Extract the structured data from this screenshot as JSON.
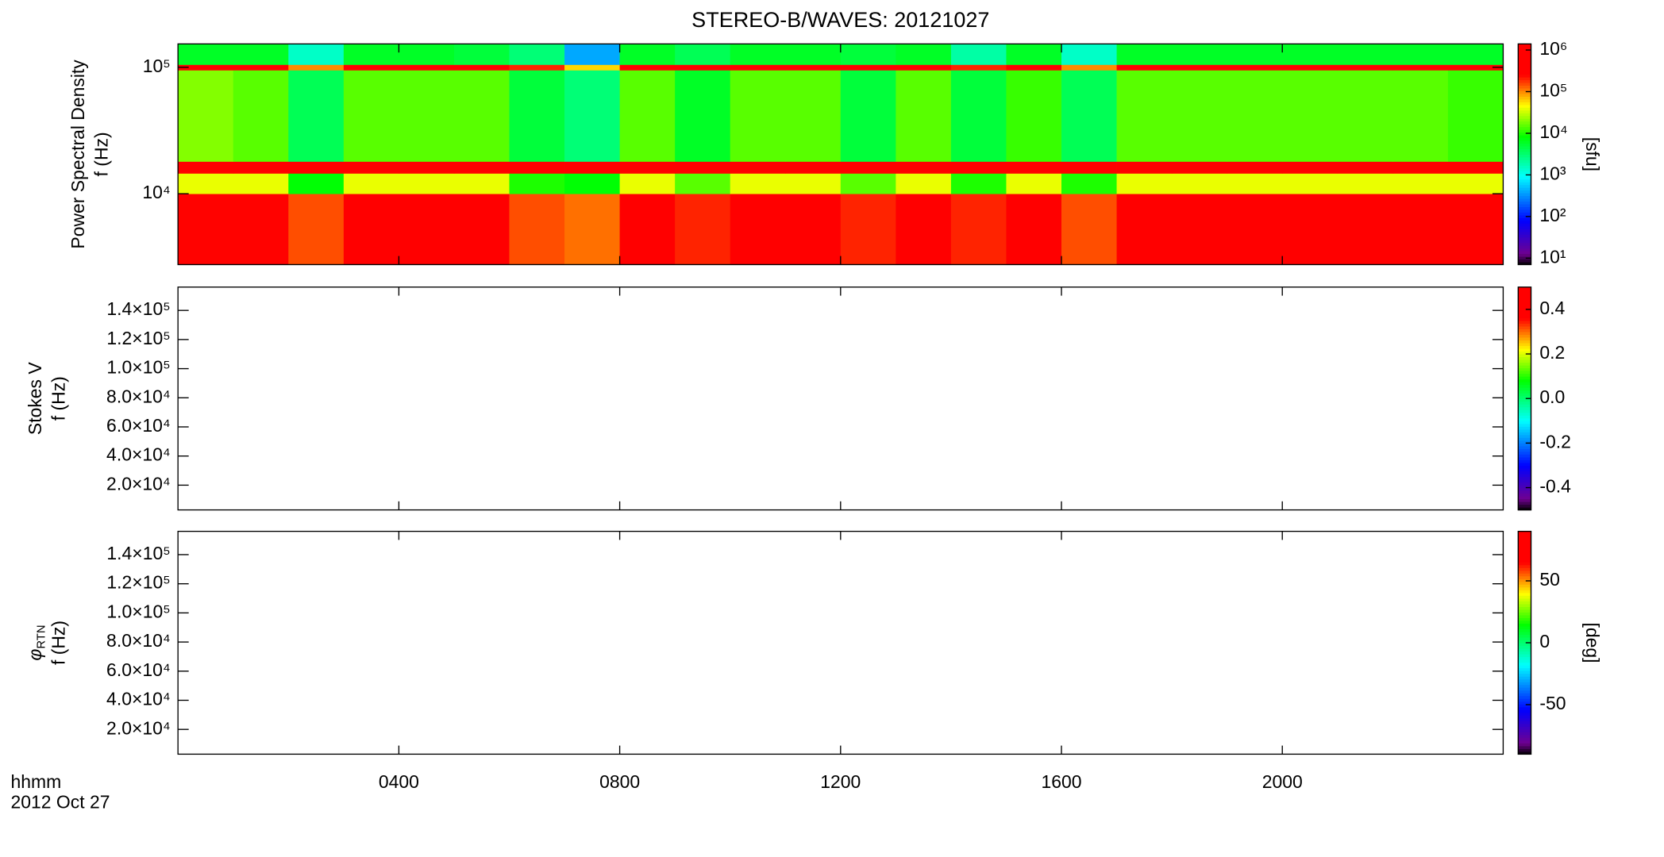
{
  "chart_data": [
    {
      "type": "heatmap",
      "title": "STEREO-B/WAVES: 20121027",
      "ylabel": "Power Spectral Density",
      "ysublabel": "f (Hz)",
      "xlim": [
        0,
        24
      ],
      "ylim": [
        2750,
        153000
      ],
      "ylog": true,
      "yticks": [
        {
          "value": 10000,
          "label": "10⁴"
        },
        {
          "value": 100000,
          "label": "10⁵"
        }
      ],
      "x_bins": [
        0,
        1,
        2,
        3,
        4,
        5,
        6,
        7,
        8,
        9,
        10,
        11,
        12,
        13,
        14,
        15,
        16,
        17,
        18,
        19,
        20,
        21,
        22,
        23,
        24
      ],
      "y_bins": [
        2750,
        10000,
        14500,
        18000,
        95000,
        105000,
        153000
      ],
      "values": [
        [
          250000,
          250000,
          150000,
          300000,
          400000,
          400000,
          150000,
          120000,
          400000,
          200000,
          400000,
          500000,
          200000,
          400000,
          200000,
          300000,
          150000,
          500000,
          500000,
          500000,
          500000,
          500000,
          500000,
          500000
        ],
        [
          40000,
          40000,
          8000,
          40000,
          40000,
          40000,
          10000,
          8000,
          40000,
          15000,
          40000,
          40000,
          15000,
          40000,
          10000,
          40000,
          10000,
          40000,
          40000,
          40000,
          40000,
          40000,
          40000,
          40000
        ],
        [
          1000000,
          1000000,
          1000000,
          1000000,
          1000000,
          1000000,
          1000000,
          1000000,
          1000000,
          1000000,
          1000000,
          1000000,
          1000000,
          1000000,
          1000000,
          1000000,
          1000000,
          1000000,
          1000000,
          1000000,
          1000000,
          1000000,
          1000000,
          1000000
        ],
        [
          20000,
          15000,
          4000,
          15000,
          15000,
          15000,
          5000,
          3000,
          15000,
          6000,
          15000,
          15000,
          5000,
          15000,
          5000,
          12000,
          4000,
          15000,
          15000,
          15000,
          15000,
          15000,
          15000,
          12000
        ],
        [
          300000,
          300000,
          100000,
          300000,
          300000,
          300000,
          200000,
          60000,
          300000,
          300000,
          300000,
          300000,
          300000,
          300000,
          200000,
          300000,
          100000,
          300000,
          300000,
          300000,
          300000,
          300000,
          300000,
          300000
        ],
        [
          6000,
          6000,
          1500,
          6000,
          6000,
          5000,
          3000,
          400,
          6000,
          4000,
          6000,
          6000,
          5000,
          6000,
          2000,
          6000,
          1500,
          6000,
          6000,
          6000,
          6000,
          6000,
          6000,
          6000
        ]
      ],
      "colormap": "rainbow",
      "colorbar": {
        "label": "[sfu]",
        "log": true,
        "lim": [
          7,
          1400000
        ],
        "ticks": [
          {
            "value": 10,
            "label": "10¹"
          },
          {
            "value": 100,
            "label": "10²"
          },
          {
            "value": 1000,
            "label": "10³"
          },
          {
            "value": 10000,
            "label": "10⁴"
          },
          {
            "value": 100000,
            "label": "10⁵"
          },
          {
            "value": 1000000,
            "label": "10⁶"
          }
        ]
      }
    },
    {
      "type": "heatmap",
      "ylabel": "Stokes V",
      "ysublabel": "f (Hz)",
      "xlim": [
        0,
        24
      ],
      "ylim": [
        3000,
        156000
      ],
      "ylog": false,
      "yticks": [
        {
          "value": 20000,
          "label": "2.0×10⁴"
        },
        {
          "value": 40000,
          "label": "4.0×10⁴"
        },
        {
          "value": 60000,
          "label": "6.0×10⁴"
        },
        {
          "value": 80000,
          "label": "8.0×10⁴"
        },
        {
          "value": 100000,
          "label": "1.0×10⁵"
        },
        {
          "value": 120000,
          "label": "1.2×10⁵"
        },
        {
          "value": 140000,
          "label": "1.4×10⁵"
        }
      ],
      "colormap": "rainbow",
      "colorbar": {
        "log": false,
        "lim": [
          -0.5,
          0.5
        ],
        "ticks": [
          -0.4,
          -0.2,
          {
            "value": 0,
            "label": "0.0"
          },
          0.2,
          0.4
        ]
      }
    },
    {
      "type": "heatmap",
      "ylabel": "φ",
      "ylabel_sub": "RTN",
      "ysublabel": "f (Hz)",
      "xlim": [
        0,
        24
      ],
      "ylim": [
        3000,
        156000
      ],
      "ylog": false,
      "yticks": [
        {
          "value": 20000,
          "label": "2.0×10⁴"
        },
        {
          "value": 40000,
          "label": "4.0×10⁴"
        },
        {
          "value": 60000,
          "label": "6.0×10⁴"
        },
        {
          "value": 80000,
          "label": "8.0×10⁴"
        },
        {
          "value": 100000,
          "label": "1.0×10⁵"
        },
        {
          "value": 120000,
          "label": "1.2×10⁵"
        },
        {
          "value": 140000,
          "label": "1.4×10⁵"
        }
      ],
      "xticks": [
        {
          "value": 4,
          "label": "0400"
        },
        {
          "value": 8,
          "label": "0800"
        },
        {
          "value": 12,
          "label": "1200"
        },
        {
          "value": 16,
          "label": "1600"
        },
        {
          "value": 20,
          "label": "2000"
        }
      ],
      "xlabel": "hhmm",
      "date": "2012 Oct 27",
      "colormap": "rainbow",
      "colorbar": {
        "label": "[deg]",
        "log": false,
        "lim": [
          -90,
          90
        ],
        "ticks": [
          -50,
          0,
          50
        ]
      }
    }
  ]
}
